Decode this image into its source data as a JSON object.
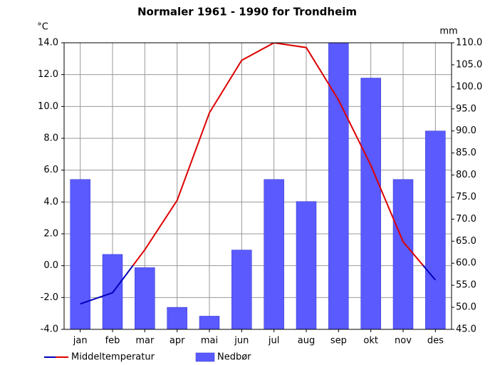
{
  "chart_data": {
    "type": "bar-line",
    "title": "Normaler 1961 - 1990 for Trondheim",
    "y_label": "°C",
    "y2_label": "mm",
    "categories": [
      "jan",
      "feb",
      "mar",
      "apr",
      "mai",
      "jun",
      "jul",
      "aug",
      "sep",
      "okt",
      "nov",
      "des"
    ],
    "series": [
      {
        "name": "Middeltemperatur",
        "type": "line",
        "color": "#dd0000",
        "negative_color": "#0000bb",
        "values": [
          -2.4,
          -1.7,
          1.0,
          4.1,
          9.6,
          12.9,
          14.0,
          13.7,
          10.4,
          6.3,
          1.5,
          -0.9
        ]
      },
      {
        "name": "Nedbør",
        "type": "bar",
        "axis": "y2",
        "color": "#5a5aff",
        "values": [
          79,
          62,
          59,
          50,
          48,
          63,
          79,
          74,
          110,
          102,
          79,
          90
        ]
      }
    ],
    "ylim": [
      -4,
      14
    ],
    "yticks": [
      {
        "value": -4,
        "label": "-4.0"
      },
      {
        "value": -2,
        "label": "-2.0"
      },
      {
        "value": 0,
        "label": "0.0"
      },
      {
        "value": 2,
        "label": "2.0"
      },
      {
        "value": 4,
        "label": "4.0"
      },
      {
        "value": 6,
        "label": "6.0"
      },
      {
        "value": 8,
        "label": "8.0"
      },
      {
        "value": 10,
        "label": "10.0"
      },
      {
        "value": 12,
        "label": "12.0"
      },
      {
        "value": 14,
        "label": "14.0"
      }
    ],
    "y2lim": [
      45,
      110
    ],
    "y2ticks": [
      {
        "value": 45,
        "label": "45.0"
      },
      {
        "value": 50,
        "label": "50.0"
      },
      {
        "value": 55,
        "label": "55.0"
      },
      {
        "value": 60,
        "label": "60.0"
      },
      {
        "value": 65,
        "label": "65.0"
      },
      {
        "value": 70,
        "label": "70.0"
      },
      {
        "value": 75,
        "label": "75.0"
      },
      {
        "value": 80,
        "label": "80.0"
      },
      {
        "value": 85,
        "label": "85.0"
      },
      {
        "value": 90,
        "label": "90.0"
      },
      {
        "value": 95,
        "label": "95.0"
      },
      {
        "value": 100,
        "label": "100.0"
      },
      {
        "value": 105,
        "label": "105.0"
      },
      {
        "value": 110,
        "label": "110.0"
      }
    ],
    "grid": true
  }
}
